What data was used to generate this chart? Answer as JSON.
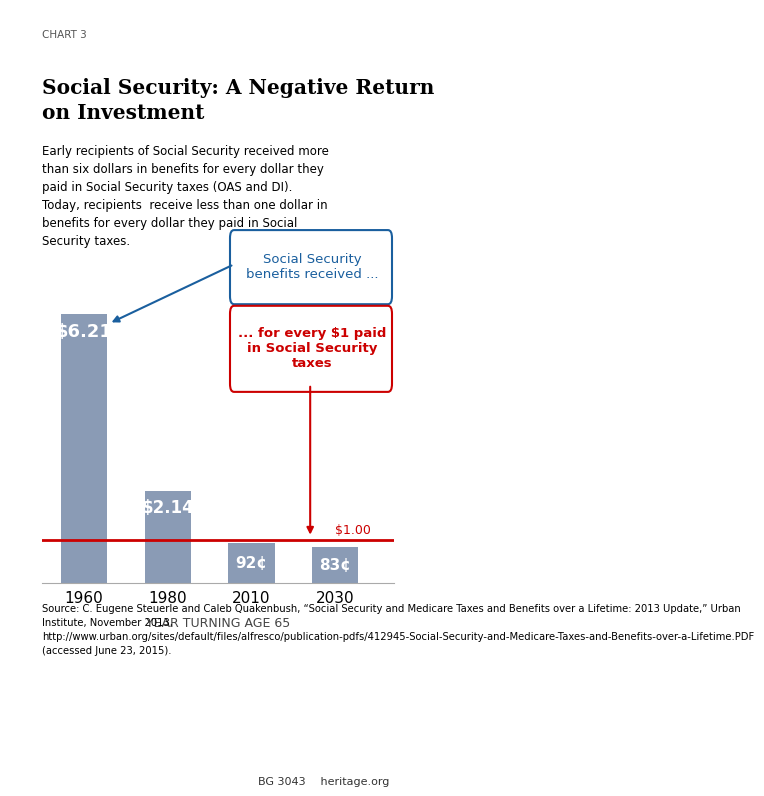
{
  "chart_label": "CHART 3",
  "title": "Social Security: A Negative Return\non Investment",
  "subtitle": "Early recipients of Social Security received more\nthan six dollars in benefits for every dollar they\npaid in Social Security taxes (OAS and DI).\nToday, recipients  receive less than one dollar in\nbenefits for every dollar they paid in Social\nSecurity taxes.",
  "categories": [
    "1960",
    "1980",
    "2010",
    "2030"
  ],
  "values": [
    6.21,
    2.14,
    0.92,
    0.83
  ],
  "bar_labels": [
    "$6.21",
    "$2.14",
    "92¢",
    "83¢"
  ],
  "bar_color": "#8a9bb5",
  "reference_line": 1.0,
  "reference_label": "$1.00",
  "xlabel": "YEAR TURNING AGE 65",
  "annotation_blue_text": "Social Security\nbenefits received ...",
  "annotation_red_text": "... for every $1 paid\nin Social Security\ntaxes",
  "blue_color": "#1a5f9e",
  "red_color": "#cc0000",
  "source_text": "Source: C. Eugene Steuerle and Caleb Quakenbush, “Social Security and Medicare Taxes and Benefits over a Lifetime: 2013 Update,” Urban Institute, November 2013, http://www.urban.org/sites/default/files/alfresco/publication-pdfs/412945-Social-Security-and-Medicare-Taxes-and-Benefits-over-a-Lifetime.PDF (accessed June 23, 2015).",
  "footer_text": "BG 3043",
  "footer_site": "heritage.org",
  "bg_color": "#ffffff",
  "ylim": [
    0,
    7.0
  ]
}
